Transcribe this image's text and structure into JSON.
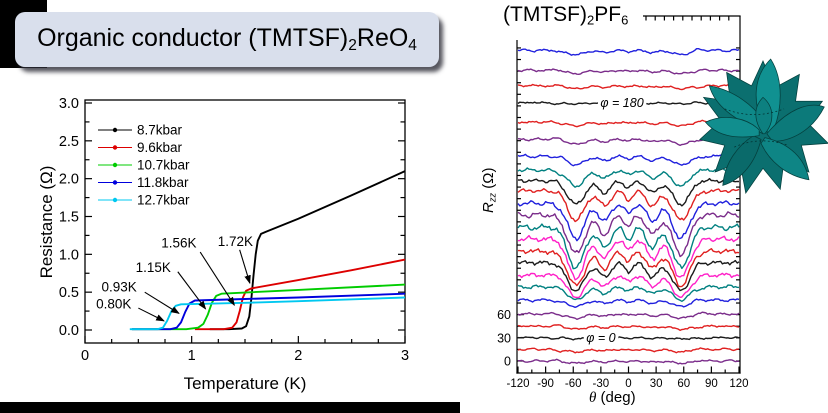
{
  "title_box": {
    "bg": "#d9dfec",
    "parts": [
      [
        "t",
        "Organic conductor (TMTSF)"
      ],
      [
        "s",
        "2"
      ],
      [
        "t",
        "ReO"
      ],
      [
        "s",
        "4"
      ]
    ]
  },
  "chart_data": [
    {
      "type": "line",
      "title": "",
      "xlabel": "Temperature (K)",
      "ylabel": "Resistance (Ω)",
      "xlim": [
        0,
        3
      ],
      "ylim": [
        0,
        3
      ],
      "x_ticks": [
        "0",
        "1",
        "2",
        "3"
      ],
      "x_minor_step": 0.25,
      "y_ticks": [
        0,
        0.5,
        1,
        1.5,
        2,
        2.5,
        3
      ],
      "y_tick_labels": [
        "0.0",
        "0.5",
        "1.0",
        "1.5",
        "2.0",
        "2.5",
        "3.0"
      ],
      "grid": false,
      "legend_position": "top-left-inside",
      "series": [
        {
          "name": "8.7kbar",
          "color": "#000000",
          "tc_label": "1.72K",
          "points": [
            [
              1.17,
              0.01
            ],
            [
              1.35,
              0.01
            ],
            [
              1.47,
              0.02
            ],
            [
              1.51,
              0.05
            ],
            [
              1.54,
              0.18
            ],
            [
              1.56,
              0.42
            ],
            [
              1.58,
              0.72
            ],
            [
              1.6,
              1.0
            ],
            [
              1.62,
              1.18
            ],
            [
              1.65,
              1.27
            ],
            [
              1.7,
              1.3
            ],
            [
              2.0,
              1.47
            ],
            [
              2.5,
              1.78
            ],
            [
              3.0,
              2.1
            ]
          ]
        },
        {
          "name": "9.6kbar",
          "color": "#dd0000",
          "tc_label": "1.56K",
          "points": [
            [
              1.03,
              0.01
            ],
            [
              1.3,
              0.01
            ],
            [
              1.38,
              0.03
            ],
            [
              1.42,
              0.1
            ],
            [
              1.45,
              0.25
            ],
            [
              1.48,
              0.43
            ],
            [
              1.51,
              0.52
            ],
            [
              1.56,
              0.55
            ],
            [
              2.0,
              0.66
            ],
            [
              2.5,
              0.79
            ],
            [
              3.0,
              0.93
            ]
          ]
        },
        {
          "name": "10.7kbar",
          "color": "#00cc00",
          "tc_label": "1.15K",
          "points": [
            [
              0.44,
              0.01
            ],
            [
              0.95,
              0.01
            ],
            [
              1.06,
              0.03
            ],
            [
              1.11,
              0.08
            ],
            [
              1.15,
              0.2
            ],
            [
              1.19,
              0.36
            ],
            [
              1.23,
              0.45
            ],
            [
              1.28,
              0.48
            ],
            [
              2.0,
              0.53
            ],
            [
              3.0,
              0.6
            ]
          ]
        },
        {
          "name": "11.8kbar",
          "color": "#0000dd",
          "tc_label": "0.93K",
          "points": [
            [
              0.44,
              0.01
            ],
            [
              0.8,
              0.01
            ],
            [
              0.86,
              0.03
            ],
            [
              0.9,
              0.1
            ],
            [
              0.94,
              0.24
            ],
            [
              0.98,
              0.35
            ],
            [
              1.03,
              0.39
            ],
            [
              1.5,
              0.41
            ],
            [
              2.0,
              0.43
            ],
            [
              3.0,
              0.48
            ]
          ]
        },
        {
          "name": "12.7kbar",
          "color": "#00c8f0",
          "tc_label": "0.80K",
          "points": [
            [
              0.42,
              0.01
            ],
            [
              0.68,
              0.01
            ],
            [
              0.73,
              0.03
            ],
            [
              0.77,
              0.12
            ],
            [
              0.81,
              0.25
            ],
            [
              0.85,
              0.32
            ],
            [
              0.9,
              0.34
            ],
            [
              1.5,
              0.36
            ],
            [
              2.0,
              0.38
            ],
            [
              3.0,
              0.43
            ]
          ]
        }
      ],
      "annotations": [
        {
          "text": "1.72K",
          "text_x": 1.41,
          "text_y": 1.16,
          "arrow_from": [
            1.45,
            1.06
          ],
          "arrow_to": [
            1.545,
            0.62
          ]
        },
        {
          "text": "1.56K",
          "text_x": 0.88,
          "text_y": 1.14,
          "arrow_from": [
            1.08,
            1.03
          ],
          "arrow_to": [
            1.4,
            0.33
          ]
        },
        {
          "text": "1.15K",
          "text_x": 0.64,
          "text_y": 0.82,
          "arrow_from": [
            0.87,
            0.77
          ],
          "arrow_to": [
            1.13,
            0.28
          ]
        },
        {
          "text": "0.93K",
          "text_x": 0.32,
          "text_y": 0.56,
          "arrow_from": [
            0.56,
            0.5
          ],
          "arrow_to": [
            0.88,
            0.22
          ]
        },
        {
          "text": "0.80K",
          "text_x": 0.27,
          "text_y": 0.34,
          "arrow_from": [
            0.5,
            0.29
          ],
          "arrow_to": [
            0.74,
            0.12
          ]
        }
      ]
    },
    {
      "type": "line",
      "title_parts": [
        [
          "t",
          "(TMTSF)"
        ],
        [
          "s",
          "2"
        ],
        [
          "t",
          "PF"
        ],
        [
          "s",
          "6"
        ]
      ],
      "xlabel": "θ (deg)",
      "xlabel_parts": {
        "sym": "θ",
        "rest": " (deg)"
      },
      "ylabel": "Rzz (Ω)",
      "ylabel_parts": {
        "main": "R",
        "sub": "zz",
        "rest": " (Ω)"
      },
      "xlim": [
        -120,
        120
      ],
      "x_ticks": [
        -120,
        -90,
        -60,
        -30,
        0,
        30,
        60,
        90,
        120
      ],
      "x_minor_step": 15,
      "y_ticks": [
        0,
        30,
        60
      ],
      "y_minor_step_ohm": 15,
      "grid": false,
      "annotations": [
        "φ = 180",
        "φ = 0"
      ],
      "curves": [
        {
          "color": "#7b2d8b",
          "base": 0,
          "amp": 3
        },
        {
          "color": "#e02020",
          "base": 15,
          "amp": 3.5
        },
        {
          "color": "#1a1a1a",
          "base": 30,
          "amp": 1.5,
          "label": "φ = 0",
          "label_theta": -30
        },
        {
          "color": "#e02020",
          "base": 45,
          "amp": 4
        },
        {
          "color": "#7b2d8b",
          "base": 61,
          "amp": 6
        },
        {
          "color": "#2020dd",
          "base": 79,
          "amp": 9
        },
        {
          "color": "#008080",
          "base": 96,
          "amp": 18
        },
        {
          "color": "#ff20c8",
          "base": 111,
          "amp": 30
        },
        {
          "color": "#1a1a1a",
          "base": 127,
          "amp": 38
        },
        {
          "color": "#e02020",
          "base": 142,
          "amp": 47
        },
        {
          "color": "#ff20c8",
          "base": 158,
          "amp": 53
        },
        {
          "color": "#008080",
          "base": 173,
          "amp": 55
        },
        {
          "color": "#7b2d8b",
          "base": 189,
          "amp": 53
        },
        {
          "color": "#2020dd",
          "base": 204,
          "amp": 48
        },
        {
          "color": "#e02020",
          "base": 220,
          "amp": 40
        },
        {
          "color": "#1a1a1a",
          "base": 233,
          "amp": 32
        },
        {
          "color": "#008080",
          "base": 247,
          "amp": 22
        },
        {
          "color": "#2020dd",
          "base": 265,
          "amp": 12
        },
        {
          "color": "#7b2d8b",
          "base": 287,
          "amp": 7
        },
        {
          "color": "#e02020",
          "base": 309,
          "amp": 5
        },
        {
          "color": "#1a1a1a",
          "base": 334,
          "amp": 1.5,
          "label": "φ = 180",
          "label_theta": -7
        },
        {
          "color": "#e02020",
          "base": 356,
          "amp": 4
        },
        {
          "color": "#7b2d8b",
          "base": 376,
          "amp": 4.5
        },
        {
          "color": "#2020dd",
          "base": 402,
          "amp": 6
        }
      ]
    }
  ],
  "decor": {
    "fermi_flower_color": "#0d8686",
    "slide_border_color": "#000000"
  }
}
